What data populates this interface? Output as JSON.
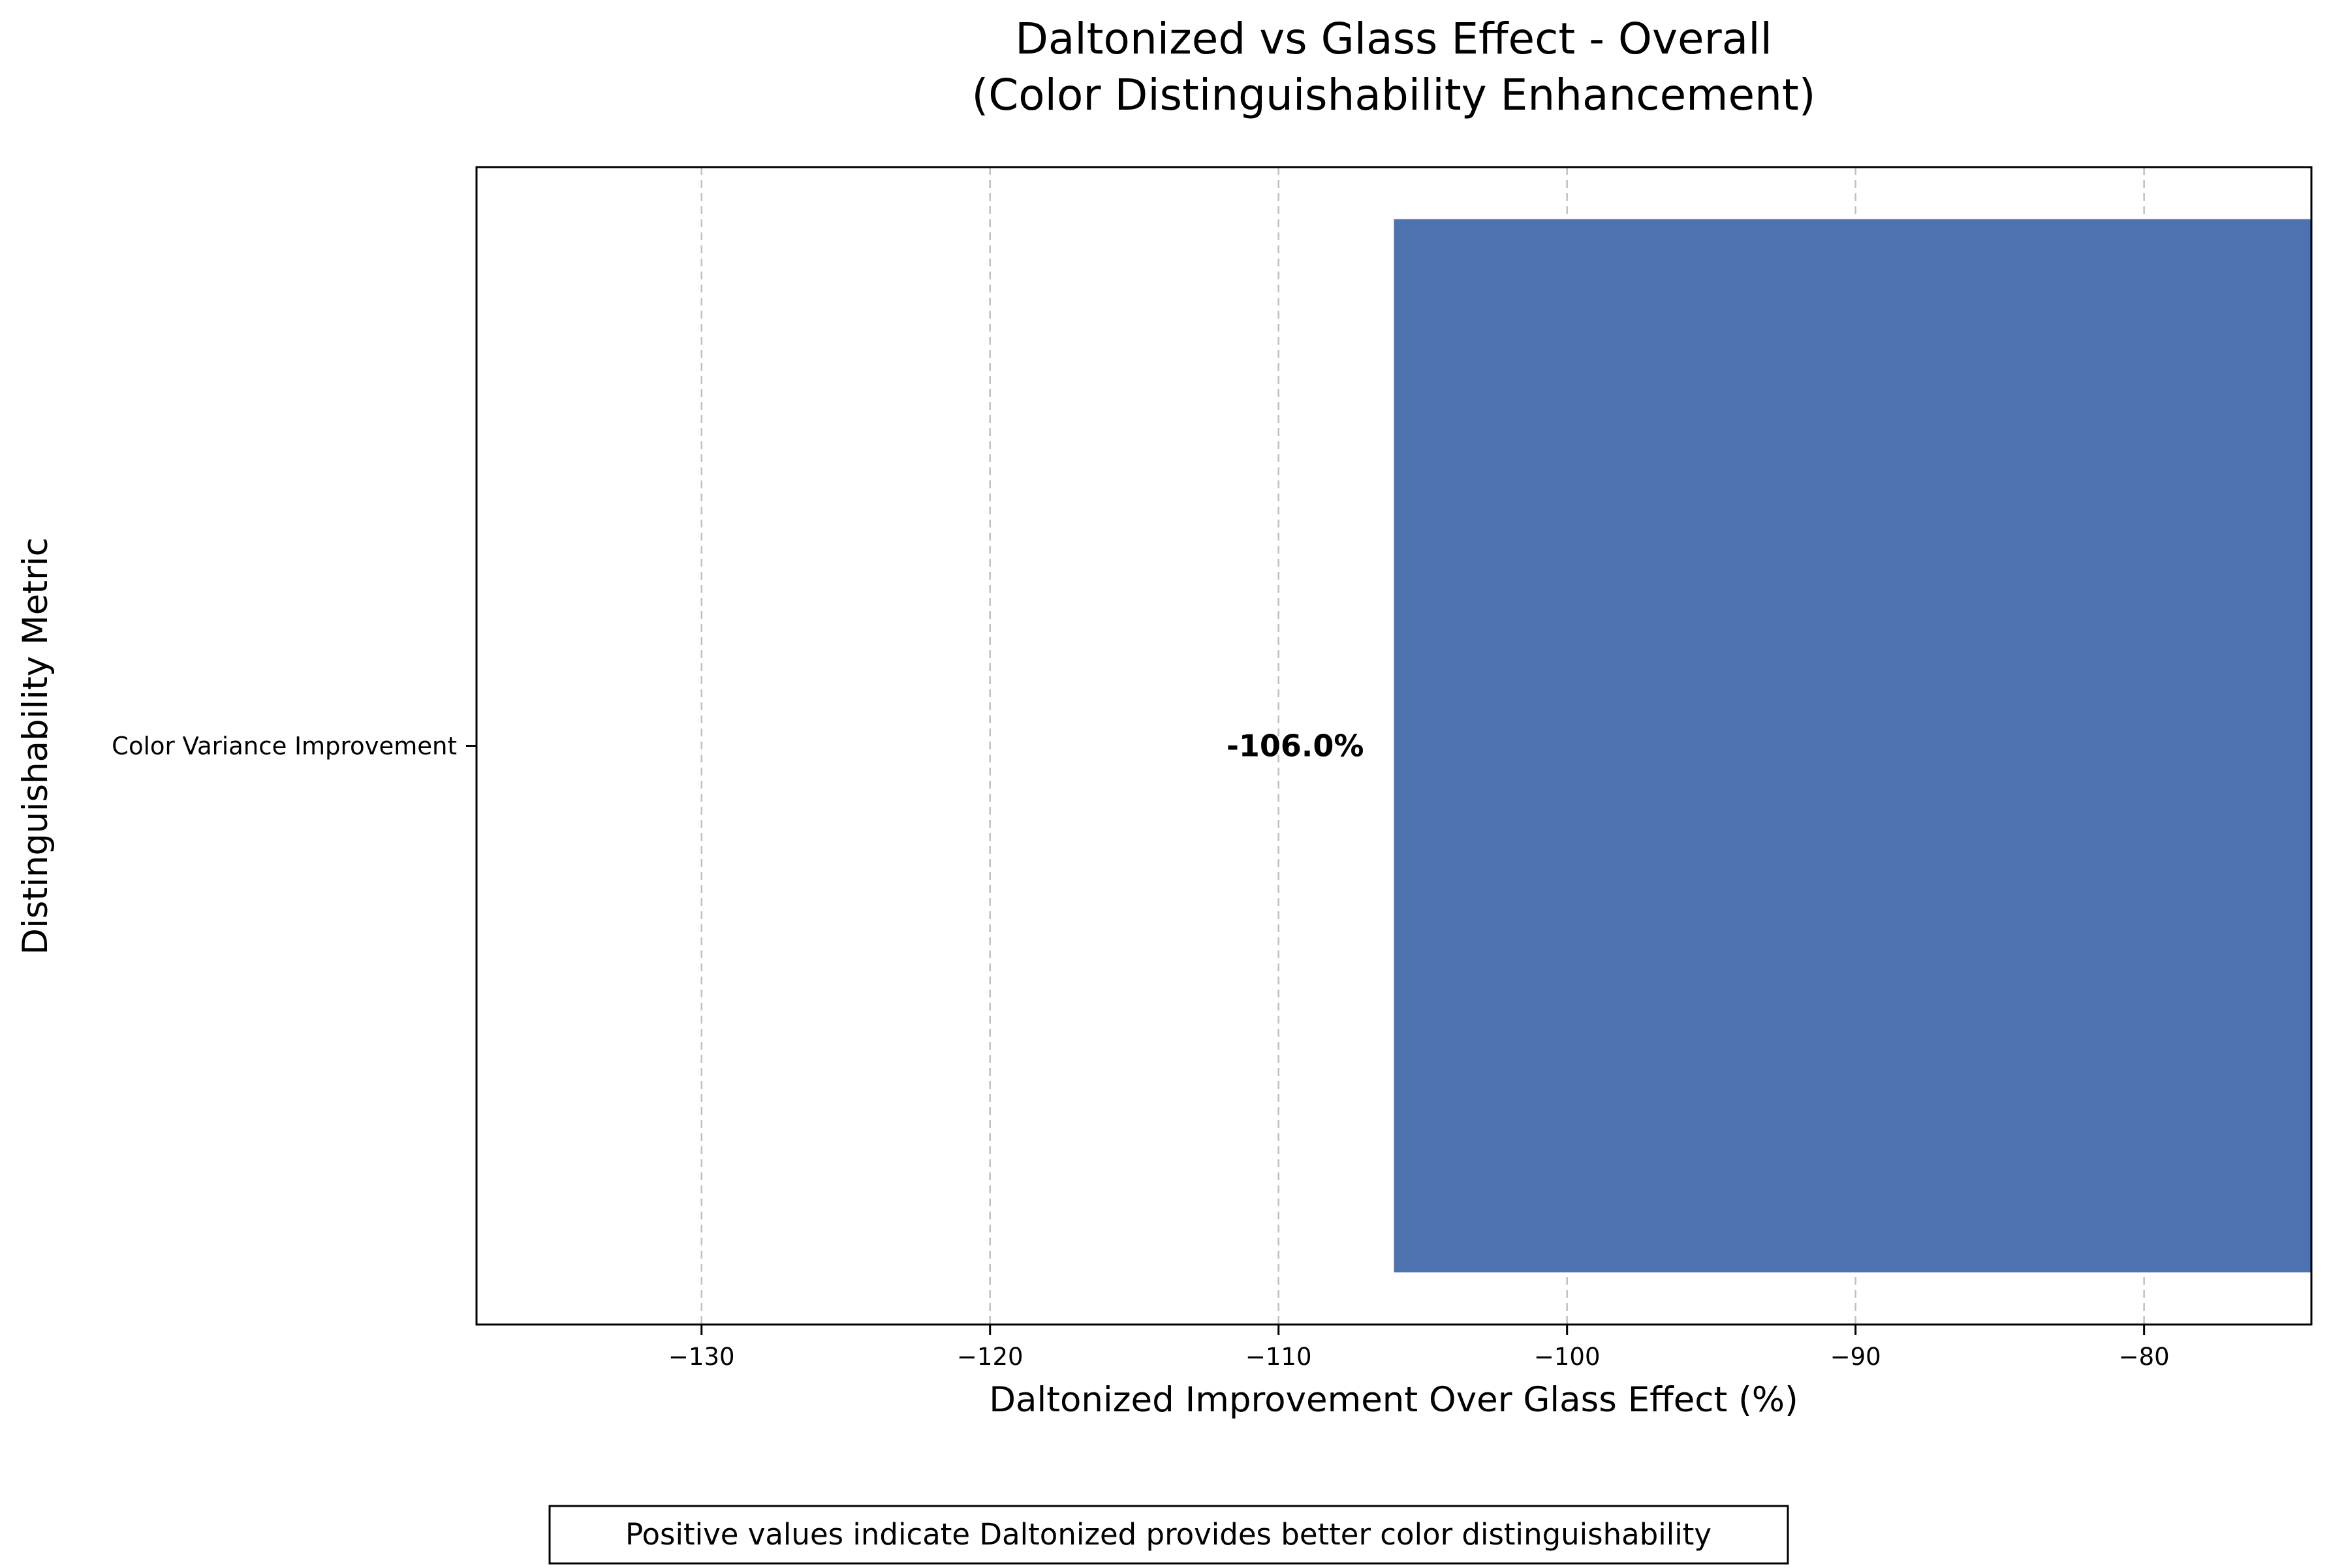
{
  "chart_data": {
    "type": "bar",
    "orientation": "horizontal",
    "title_line1": "Daltonized vs Glass Effect - Overall",
    "title_line2": "(Color Distinguishability Enhancement)",
    "xlabel": "Daltonized Improvement Over Glass Effect (%)",
    "ylabel": "Distinguishability Metric",
    "categories": [
      "Color Variance Improvement"
    ],
    "values": [
      -106.0
    ],
    "data_labels": [
      "-106.0%"
    ],
    "xlim": [
      -137.8,
      -74.2
    ],
    "xticks": [
      -130,
      -120,
      -110,
      -100,
      -90,
      -80
    ],
    "xtick_labels": [
      "−130",
      "−120",
      "−110",
      "−100",
      "−90",
      "−80"
    ],
    "grid": "x-dashed",
    "bar_color": "#4c72b0",
    "grid_color": "#c0c0c0"
  },
  "annotation": {
    "text": "Positive values indicate Daltonized provides better color distinguishability"
  }
}
